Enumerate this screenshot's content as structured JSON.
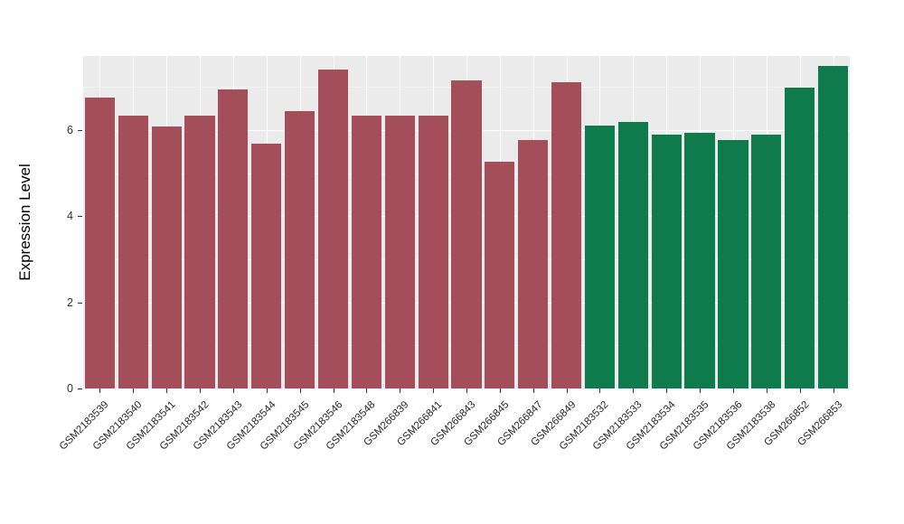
{
  "chart_data": {
    "type": "bar",
    "title": "",
    "xlabel": "",
    "ylabel": "Expression Level",
    "ylim": [
      0,
      7.72
    ],
    "yticks": [
      0,
      2,
      4,
      6
    ],
    "yticks_minor": [
      1,
      3,
      5,
      7
    ],
    "grid": true,
    "legend": "none",
    "panel_background": "#EBEBEB",
    "categories": [
      "GSM2183539",
      "GSM2183540",
      "GSM2183541",
      "GSM2183542",
      "GSM2183543",
      "GSM2183544",
      "GSM2183545",
      "GSM2183546",
      "GSM2183548",
      "GSM266839",
      "GSM266841",
      "GSM266843",
      "GSM266845",
      "GSM266847",
      "GSM266849",
      "GSM2183532",
      "GSM2183533",
      "GSM2183534",
      "GSM2183535",
      "GSM2183536",
      "GSM2183538",
      "GSM266852",
      "GSM266853"
    ],
    "values": [
      6.76,
      6.33,
      6.09,
      6.34,
      6.95,
      5.68,
      6.44,
      7.41,
      6.34,
      6.34,
      6.34,
      7.16,
      5.27,
      5.76,
      7.12,
      6.1,
      6.19,
      5.9,
      5.94,
      5.77,
      5.9,
      6.98,
      7.49
    ],
    "group_index": [
      0,
      0,
      0,
      0,
      0,
      0,
      0,
      0,
      0,
      0,
      0,
      0,
      0,
      0,
      0,
      1,
      1,
      1,
      1,
      1,
      1,
      1,
      1
    ],
    "group_colors": [
      "#A34E5A",
      "#0F7A4C"
    ]
  }
}
